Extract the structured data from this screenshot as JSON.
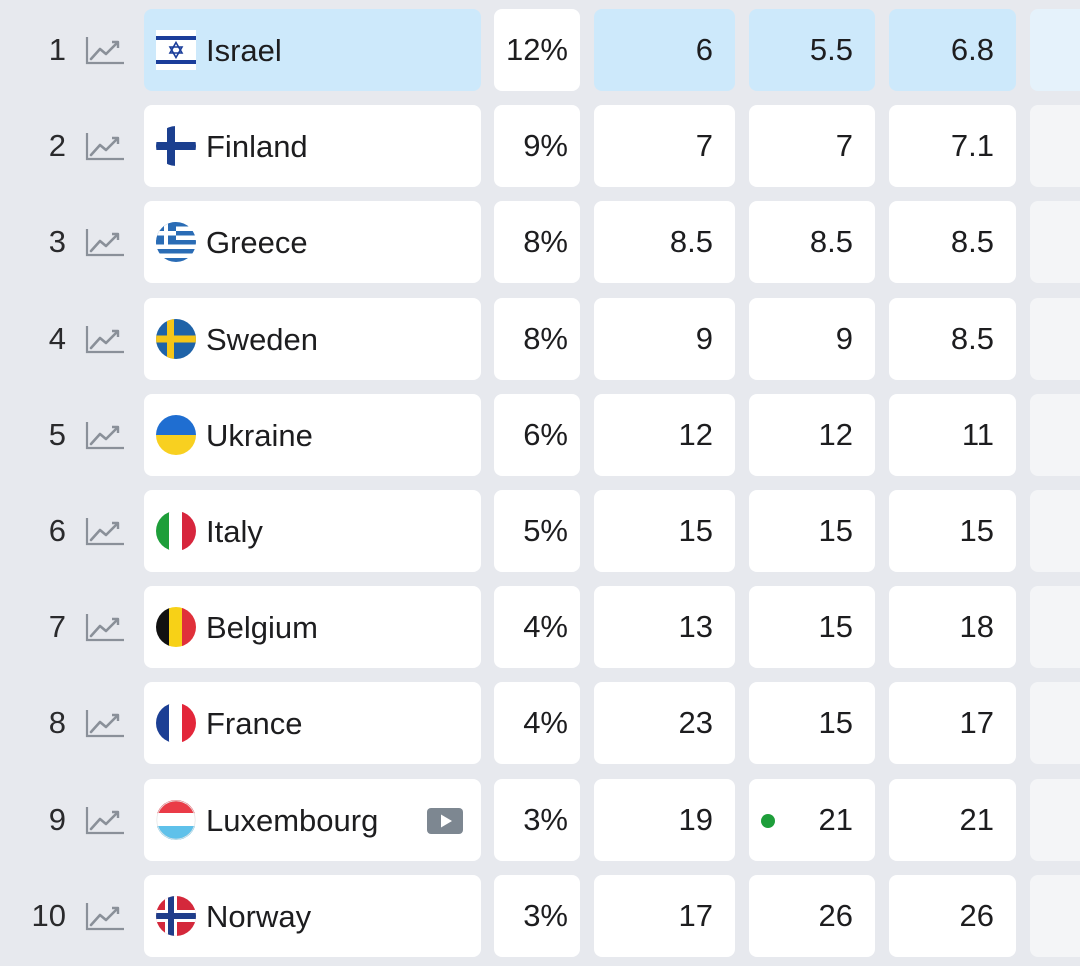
{
  "rows": [
    {
      "rank": "1",
      "country": "Israel",
      "flag": "israel-flag",
      "share": "12%",
      "col1": "6",
      "col2": "5.5",
      "col3": "6.8",
      "highlight": true
    },
    {
      "rank": "2",
      "country": "Finland",
      "flag": "finland-flag",
      "share": "9%",
      "col1": "7",
      "col2": "7",
      "col3": "7.1"
    },
    {
      "rank": "3",
      "country": "Greece",
      "flag": "greece-flag",
      "share": "8%",
      "col1": "8.5",
      "col2": "8.5",
      "col3": "8.5"
    },
    {
      "rank": "4",
      "country": "Sweden",
      "flag": "sweden-flag",
      "share": "8%",
      "col1": "9",
      "col2": "9",
      "col3": "8.5"
    },
    {
      "rank": "5",
      "country": "Ukraine",
      "flag": "ukraine-flag",
      "share": "6%",
      "col1": "12",
      "col2": "12",
      "col3": "11"
    },
    {
      "rank": "6",
      "country": "Italy",
      "flag": "italy-flag",
      "share": "5%",
      "col1": "15",
      "col2": "15",
      "col3": "15"
    },
    {
      "rank": "7",
      "country": "Belgium",
      "flag": "belgium-flag",
      "share": "4%",
      "col1": "13",
      "col2": "15",
      "col3": "18"
    },
    {
      "rank": "8",
      "country": "France",
      "flag": "france-flag",
      "share": "4%",
      "col1": "23",
      "col2": "15",
      "col3": "17"
    },
    {
      "rank": "9",
      "country": "Luxembourg",
      "flag": "luxembourg-flag",
      "share": "3%",
      "col1": "19",
      "col2": "21",
      "col3": "21",
      "video_icon": "play-video-icon",
      "col2_indicator": "green-dot"
    },
    {
      "rank": "10",
      "country": "Norway",
      "flag": "norway-flag",
      "share": "3%",
      "col1": "17",
      "col2": "26",
      "col3": "26"
    }
  ],
  "icons": {
    "trend": "trend-chart-icon"
  },
  "colors": {
    "highlight": "#cde9fb",
    "background": "#e7e9ee",
    "cell": "#ffffff",
    "trend_icon": "#8a9099",
    "indicator_dot": "#1e9e3a"
  }
}
